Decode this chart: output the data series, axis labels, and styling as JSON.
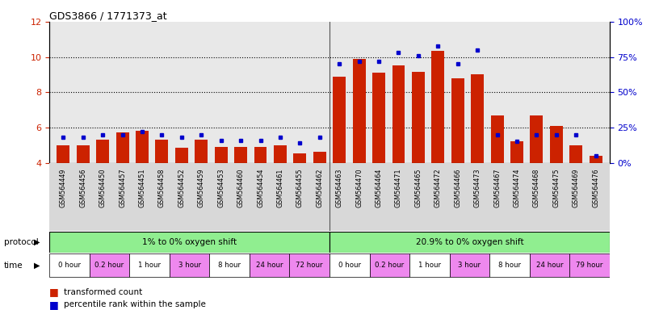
{
  "title": "GDS3866 / 1771373_at",
  "ylim_left": [
    4,
    12
  ],
  "ylim_right": [
    0,
    100
  ],
  "yticks_left": [
    4,
    6,
    8,
    10,
    12
  ],
  "yticks_right": [
    0,
    25,
    50,
    75,
    100
  ],
  "bar_color": "#cc2200",
  "dot_color": "#0000cc",
  "samples": [
    "GSM564449",
    "GSM564456",
    "GSM564450",
    "GSM564457",
    "GSM564451",
    "GSM564458",
    "GSM564452",
    "GSM564459",
    "GSM564453",
    "GSM564460",
    "GSM564454",
    "GSM564461",
    "GSM564455",
    "GSM564462",
    "GSM564463",
    "GSM564470",
    "GSM564464",
    "GSM564471",
    "GSM564465",
    "GSM564472",
    "GSM564466",
    "GSM564473",
    "GSM564467",
    "GSM564474",
    "GSM564468",
    "GSM564475",
    "GSM564469",
    "GSM564476"
  ],
  "transformed_count": [
    5.0,
    5.0,
    5.3,
    5.7,
    5.8,
    5.3,
    4.85,
    5.3,
    4.9,
    4.9,
    4.9,
    5.0,
    4.55,
    4.6,
    8.9,
    9.9,
    9.1,
    9.5,
    9.15,
    10.35,
    8.8,
    9.0,
    6.7,
    5.2,
    6.7,
    6.1,
    5.0,
    4.4
  ],
  "percentile_rank": [
    18,
    18,
    20,
    20,
    22,
    20,
    18,
    20,
    16,
    16,
    16,
    18,
    14,
    18,
    70,
    72,
    72,
    78,
    76,
    83,
    70,
    80,
    20,
    15,
    20,
    20,
    20,
    5
  ],
  "group1_label": "1% to 0% oxygen shift",
  "group2_label": "20.9% to 0% oxygen shift",
  "time_labels_group1": [
    "0 hour",
    "0.2 hour",
    "1 hour",
    "3 hour",
    "8 hour",
    "24 hour",
    "72 hour"
  ],
  "time_labels_group2": [
    "0 hour",
    "0.2 hour",
    "1 hour",
    "3 hour",
    "8 hour",
    "24 hour",
    "79 hour"
  ],
  "protocol_label": "protocol",
  "time_label": "time",
  "legend_bar": "transformed count",
  "legend_dot": "percentile rank within the sample",
  "group_color": "#90ee90",
  "time_color_white": "#ffffff",
  "time_color_pink": "#ee88ee",
  "ylabel_left_color": "#cc2200",
  "ylabel_right_color": "#0000cc",
  "plot_bg": "#e8e8e8",
  "xtick_bg": "#d8d8d8"
}
